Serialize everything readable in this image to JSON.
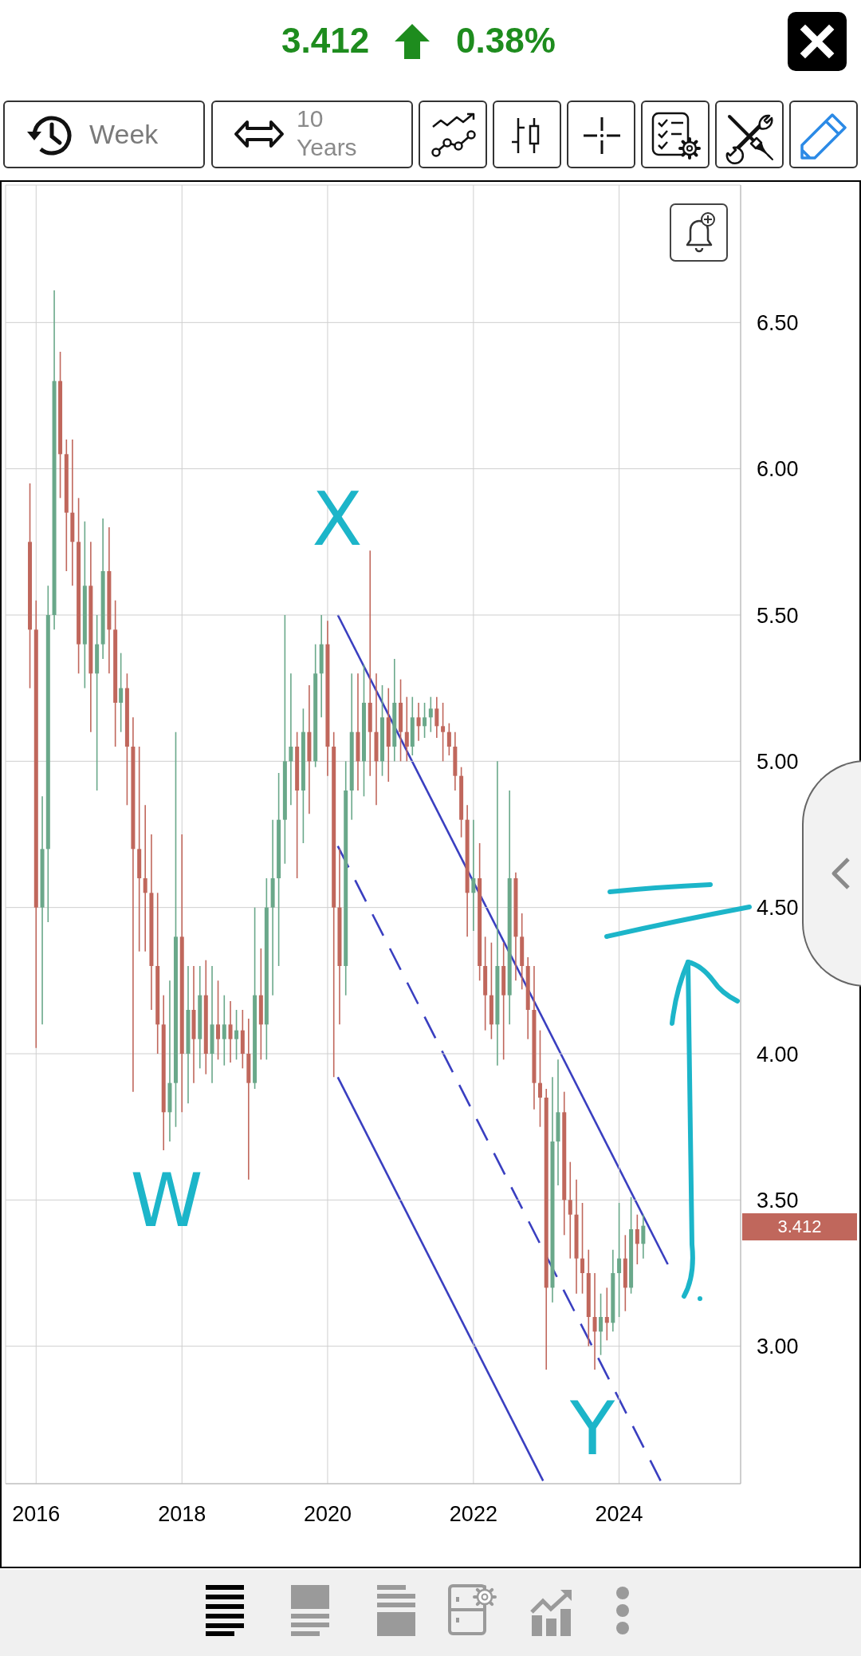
{
  "chart_data": {
    "type": "candlestick",
    "x": [
      "2015-12",
      "2016-01",
      "2016-02",
      "2016-03",
      "2016-04",
      "2016-05",
      "2016-06",
      "2016-07",
      "2016-08",
      "2016-09",
      "2016-10",
      "2016-11",
      "2016-12",
      "2017-01",
      "2017-02",
      "2017-03",
      "2017-04",
      "2017-05",
      "2017-06",
      "2017-07",
      "2017-08",
      "2017-09",
      "2017-10",
      "2017-11",
      "2017-12",
      "2018-01",
      "2018-02",
      "2018-03",
      "2018-04",
      "2018-05",
      "2018-06",
      "2018-07",
      "2018-08",
      "2018-09",
      "2018-10",
      "2018-11",
      "2018-12",
      "2019-01",
      "2019-02",
      "2019-03",
      "2019-04",
      "2019-05",
      "2019-06",
      "2019-07",
      "2019-08",
      "2019-09",
      "2019-10",
      "2019-11",
      "2019-12",
      "2020-01",
      "2020-02",
      "2020-03",
      "2020-04",
      "2020-05",
      "2020-06",
      "2020-07",
      "2020-08",
      "2020-09",
      "2020-10",
      "2020-11",
      "2020-12",
      "2021-01",
      "2021-02",
      "2021-03",
      "2021-04",
      "2021-05",
      "2021-06",
      "2021-07",
      "2021-08",
      "2021-09",
      "2021-10",
      "2021-11",
      "2021-12",
      "2022-01",
      "2022-02",
      "2022-03",
      "2022-04",
      "2022-05",
      "2022-06",
      "2022-07",
      "2022-08",
      "2022-09",
      "2022-10",
      "2022-11",
      "2022-12",
      "2023-01",
      "2023-02",
      "2023-03",
      "2023-04",
      "2023-05",
      "2023-06",
      "2023-07",
      "2023-08",
      "2023-09",
      "2023-10",
      "2023-11",
      "2023-12",
      "2024-01",
      "2024-02",
      "2024-03",
      "2024-04",
      "2024-05"
    ],
    "ohlc": [
      [
        5.75,
        5.95,
        5.25,
        5.45
      ],
      [
        5.45,
        5.55,
        4.02,
        4.5
      ],
      [
        4.5,
        4.88,
        4.1,
        4.7
      ],
      [
        4.7,
        5.6,
        4.45,
        5.5
      ],
      [
        5.5,
        6.61,
        5.45,
        6.3
      ],
      [
        6.3,
        6.4,
        5.9,
        6.05
      ],
      [
        6.05,
        6.1,
        5.65,
        5.85
      ],
      [
        5.85,
        6.1,
        5.6,
        5.75
      ],
      [
        5.75,
        5.9,
        5.3,
        5.4
      ],
      [
        5.4,
        5.82,
        5.25,
        5.6
      ],
      [
        5.6,
        5.75,
        5.1,
        5.3
      ],
      [
        5.3,
        5.5,
        4.9,
        5.4
      ],
      [
        5.4,
        5.83,
        5.35,
        5.65
      ],
      [
        5.65,
        5.8,
        5.3,
        5.45
      ],
      [
        5.45,
        5.55,
        5.05,
        5.2
      ],
      [
        5.2,
        5.37,
        5.1,
        5.25
      ],
      [
        5.25,
        5.3,
        4.85,
        5.05
      ],
      [
        5.05,
        5.15,
        3.87,
        4.7
      ],
      [
        4.7,
        5.05,
        4.35,
        4.6
      ],
      [
        4.6,
        4.85,
        4.35,
        4.55
      ],
      [
        4.55,
        4.75,
        4.15,
        4.3
      ],
      [
        4.3,
        4.55,
        4.0,
        4.1
      ],
      [
        4.1,
        4.2,
        3.67,
        3.8
      ],
      [
        3.8,
        4.25,
        3.7,
        3.9
      ],
      [
        3.9,
        5.1,
        3.75,
        4.4
      ],
      [
        4.4,
        4.75,
        3.8,
        4.0
      ],
      [
        4.0,
        4.3,
        3.83,
        4.15
      ],
      [
        4.15,
        4.3,
        3.9,
        4.05
      ],
      [
        4.05,
        4.3,
        3.95,
        4.2
      ],
      [
        4.2,
        4.32,
        3.93,
        4.0
      ],
      [
        4.0,
        4.3,
        3.9,
        4.1
      ],
      [
        4.1,
        4.25,
        3.98,
        4.05
      ],
      [
        4.05,
        4.2,
        3.96,
        4.1
      ],
      [
        4.1,
        4.18,
        3.97,
        4.05
      ],
      [
        4.05,
        4.15,
        3.98,
        4.08
      ],
      [
        4.08,
        4.15,
        3.95,
        4.0
      ],
      [
        4.0,
        4.12,
        3.57,
        3.9
      ],
      [
        3.9,
        4.5,
        3.88,
        4.2
      ],
      [
        4.2,
        4.36,
        3.98,
        4.1
      ],
      [
        4.1,
        4.6,
        3.98,
        4.5
      ],
      [
        4.5,
        4.8,
        4.2,
        4.6
      ],
      [
        4.6,
        4.96,
        4.3,
        4.8
      ],
      [
        4.8,
        5.5,
        4.65,
        5.0
      ],
      [
        5.0,
        5.3,
        4.85,
        5.05
      ],
      [
        5.05,
        5.1,
        4.6,
        4.9
      ],
      [
        4.9,
        5.18,
        4.72,
        5.1
      ],
      [
        5.1,
        5.26,
        4.82,
        5.0
      ],
      [
        5.0,
        5.4,
        4.98,
        5.3
      ],
      [
        5.3,
        5.5,
        5.15,
        5.4
      ],
      [
        5.4,
        5.48,
        4.95,
        5.05
      ],
      [
        5.05,
        5.1,
        3.92,
        4.5
      ],
      [
        4.5,
        4.7,
        4.1,
        4.3
      ],
      [
        4.3,
        5.0,
        4.2,
        4.9
      ],
      [
        4.9,
        5.3,
        4.8,
        5.1
      ],
      [
        5.1,
        5.3,
        4.9,
        5.0
      ],
      [
        5.0,
        5.33,
        4.88,
        5.2
      ],
      [
        5.2,
        5.72,
        4.95,
        5.1
      ],
      [
        5.1,
        5.3,
        4.85,
        5.0
      ],
      [
        5.0,
        5.26,
        4.95,
        5.15
      ],
      [
        5.15,
        5.25,
        4.93,
        5.05
      ],
      [
        5.05,
        5.35,
        5.0,
        5.2
      ],
      [
        5.2,
        5.28,
        5.0,
        5.1
      ],
      [
        5.1,
        5.22,
        5.0,
        5.05
      ],
      [
        5.05,
        5.22,
        5.02,
        5.15
      ],
      [
        5.15,
        5.2,
        5.07,
        5.12
      ],
      [
        5.12,
        5.2,
        5.08,
        5.15
      ],
      [
        5.15,
        5.22,
        5.1,
        5.18
      ],
      [
        5.18,
        5.22,
        5.08,
        5.12
      ],
      [
        5.12,
        5.2,
        5.0,
        5.1
      ],
      [
        5.1,
        5.13,
        5.02,
        5.05
      ],
      [
        5.05,
        5.1,
        4.9,
        4.95
      ],
      [
        4.95,
        4.98,
        4.74,
        4.8
      ],
      [
        4.8,
        4.85,
        4.4,
        4.55
      ],
      [
        4.55,
        4.8,
        4.42,
        4.6
      ],
      [
        4.6,
        4.72,
        4.25,
        4.3
      ],
      [
        4.3,
        4.4,
        4.08,
        4.2
      ],
      [
        4.2,
        4.38,
        4.05,
        4.1
      ],
      [
        4.1,
        5.0,
        3.96,
        4.3
      ],
      [
        4.3,
        4.38,
        3.98,
        4.2
      ],
      [
        4.2,
        4.9,
        4.1,
        4.6
      ],
      [
        4.6,
        4.62,
        4.25,
        4.4
      ],
      [
        4.4,
        4.48,
        4.22,
        4.3
      ],
      [
        4.3,
        4.33,
        4.05,
        4.15
      ],
      [
        4.15,
        4.3,
        3.81,
        3.9
      ],
      [
        3.9,
        4.08,
        3.75,
        3.85
      ],
      [
        3.85,
        3.88,
        2.92,
        3.2
      ],
      [
        3.2,
        3.92,
        3.15,
        3.7
      ],
      [
        3.7,
        3.98,
        3.55,
        3.8
      ],
      [
        3.8,
        3.87,
        3.38,
        3.5
      ],
      [
        3.5,
        3.63,
        3.3,
        3.45
      ],
      [
        3.45,
        3.57,
        3.18,
        3.3
      ],
      [
        3.3,
        3.49,
        3.18,
        3.25
      ],
      [
        3.25,
        3.33,
        3.0,
        3.1
      ],
      [
        3.1,
        3.25,
        2.92,
        3.05
      ],
      [
        3.05,
        3.18,
        2.97,
        3.1
      ],
      [
        3.1,
        3.2,
        3.02,
        3.08
      ],
      [
        3.08,
        3.33,
        3.05,
        3.25
      ],
      [
        3.25,
        3.49,
        3.1,
        3.3
      ],
      [
        3.3,
        3.38,
        3.12,
        3.2
      ],
      [
        3.2,
        3.51,
        3.18,
        3.4
      ],
      [
        3.4,
        3.45,
        3.28,
        3.35
      ],
      [
        3.35,
        3.45,
        3.3,
        3.412
      ]
    ],
    "colors": [
      "#c0675c",
      "#c0675c",
      "#6aa88a",
      "#6aa88a",
      "#6aa88a",
      "#c0675c",
      "#c0675c",
      "#c0675c",
      "#c0675c",
      "#6aa88a",
      "#c0675c",
      "#6aa88a",
      "#6aa88a",
      "#c0675c",
      "#c0675c",
      "#6aa88a",
      "#c0675c",
      "#c0675c",
      "#c0675c",
      "#c0675c",
      "#c0675c",
      "#c0675c",
      "#c0675c",
      "#6aa88a",
      "#6aa88a",
      "#c0675c",
      "#6aa88a",
      "#c0675c",
      "#6aa88a",
      "#c0675c",
      "#6aa88a",
      "#c0675c",
      "#6aa88a",
      "#c0675c",
      "#6aa88a",
      "#c0675c",
      "#c0675c",
      "#6aa88a",
      "#c0675c",
      "#6aa88a",
      "#6aa88a",
      "#6aa88a",
      "#6aa88a",
      "#6aa88a",
      "#c0675c",
      "#6aa88a",
      "#c0675c",
      "#6aa88a",
      "#6aa88a",
      "#c0675c",
      "#c0675c",
      "#c0675c",
      "#6aa88a",
      "#6aa88a",
      "#c0675c",
      "#6aa88a",
      "#c0675c",
      "#c0675c",
      "#6aa88a",
      "#c0675c",
      "#6aa88a",
      "#c0675c",
      "#c0675c",
      "#6aa88a",
      "#c0675c",
      "#6aa88a",
      "#6aa88a",
      "#c0675c",
      "#c0675c",
      "#c0675c",
      "#c0675c",
      "#c0675c",
      "#c0675c",
      "#6aa88a",
      "#c0675c",
      "#c0675c",
      "#c0675c",
      "#6aa88a",
      "#c0675c",
      "#6aa88a",
      "#c0675c",
      "#c0675c",
      "#c0675c",
      "#c0675c",
      "#c0675c",
      "#c0675c",
      "#6aa88a",
      "#6aa88a",
      "#c0675c",
      "#c0675c",
      "#c0675c",
      "#c0675c",
      "#c0675c",
      "#c0675c",
      "#6aa88a",
      "#c0675c",
      "#6aa88a",
      "#6aa88a",
      "#c0675c",
      "#6aa88a",
      "#c0675c",
      "#6aa88a"
    ],
    "series": [
      {
        "type": "line",
        "x": [
          "2020-02-21",
          "2024-09-01"
        ],
        "values": [
          5.5,
          3.28
        ],
        "color": "#3a3fc0",
        "line_style": "solid"
      },
      {
        "type": "line",
        "x": [
          "2020-02-21",
          "2024-07-27"
        ],
        "values": [
          4.71,
          2.54
        ],
        "color": "#3a3fc0",
        "line_style": "dashed"
      },
      {
        "type": "line",
        "x": [
          "2020-02-21",
          "2022-12-16"
        ],
        "values": [
          3.92,
          2.54
        ],
        "color": "#3a3fc0",
        "line_style": "solid"
      }
    ],
    "xlim": [
      "2015-08-01",
      "2025-09-01"
    ],
    "xticks": [
      "2016",
      "2018",
      "2020",
      "2022",
      "2024"
    ],
    "ylim": [
      2.53,
      6.97
    ],
    "yticks": [
      {
        "value": 3,
        "label": "3.00"
      },
      {
        "value": 3.5,
        "label": "3.50"
      },
      {
        "value": 4,
        "label": "4.00"
      },
      {
        "value": 4.5,
        "label": "4.50"
      },
      {
        "value": 5,
        "label": "5.00"
      },
      {
        "value": 5.5,
        "label": "5.50"
      },
      {
        "value": 6,
        "label": "6.00"
      },
      {
        "value": 6.5,
        "label": "6.50"
      }
    ],
    "grid": true,
    "annotations": [
      "3.412",
      "0.38%",
      "Week",
      "10 Years",
      "W",
      "X",
      "Y",
      "3.412"
    ]
  }
}
